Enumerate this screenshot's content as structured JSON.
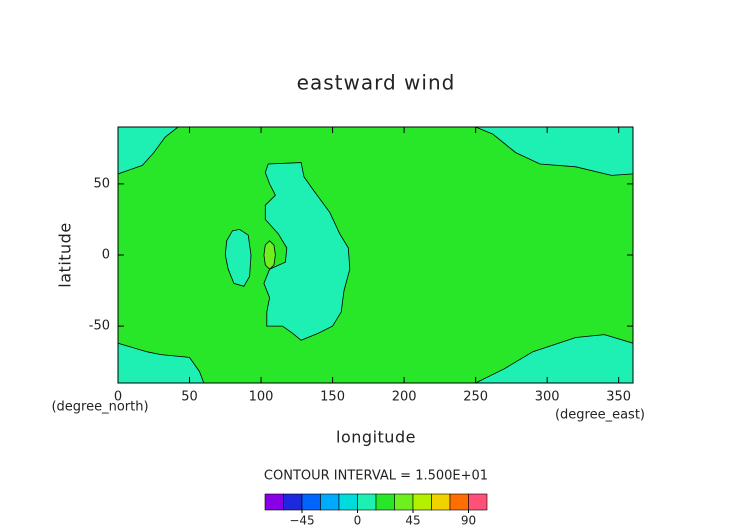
{
  "chart_data": {
    "type": "contour",
    "title": "eastward wind",
    "x_label": "longitude",
    "y_label": "latitude",
    "x_unit_label": "(degree_east)",
    "y_unit_label": "(degree_north)",
    "contour_interval_text": "CONTOUR INTERVAL = 1.500E+01",
    "xlim": [
      0,
      360
    ],
    "ylim": [
      -90,
      90
    ],
    "xticks": [
      0,
      50,
      100,
      150,
      200,
      250,
      300,
      350
    ],
    "yticks": [
      -50,
      0,
      50
    ],
    "background_level": 15,
    "regions": [
      {
        "level": 0,
        "lon": [
          0,
          42,
          33,
          25,
          17,
          0
        ],
        "lat": [
          90,
          90,
          83,
          72,
          63,
          57
        ]
      },
      {
        "level": 0,
        "lon": [
          250,
          360,
          360,
          345,
          320,
          295,
          278,
          262
        ],
        "lat": [
          90,
          90,
          57,
          56,
          62,
          64,
          72,
          85
        ]
      },
      {
        "level": 0,
        "lon": [
          0,
          20,
          30,
          50,
          57,
          60,
          0
        ],
        "lat": [
          -62,
          -68,
          -70,
          -72,
          -82,
          -90,
          -90
        ]
      },
      {
        "level": 0,
        "lon": [
          250,
          270,
          290,
          320,
          340,
          360,
          360
        ],
        "lat": [
          -90,
          -80,
          -68,
          -58,
          -56,
          -62,
          -90
        ]
      },
      {
        "level": 0,
        "lon": [
          105,
          128,
          130,
          137,
          148,
          155,
          161,
          162,
          158,
          156,
          150,
          140,
          128,
          122,
          115,
          104,
          104,
          106,
          102,
          106,
          117,
          118,
          112,
          103,
          103,
          110,
          106,
          103
        ],
        "lat": [
          64,
          65,
          55,
          45,
          30,
          15,
          5,
          -10,
          -25,
          -40,
          -50,
          -55,
          -60,
          -55,
          -50,
          -50,
          -40,
          -30,
          -20,
          -10,
          -5,
          5,
          15,
          25,
          35,
          42,
          50,
          58
        ]
      },
      {
        "level": 0,
        "lon": [
          85,
          91,
          93,
          92,
          88,
          81,
          77,
          75,
          76,
          80
        ],
        "lat": [
          18,
          14,
          0,
          -15,
          -22,
          -20,
          -10,
          0,
          10,
          17
        ]
      },
      {
        "level": 30,
        "lon": [
          106,
          109,
          110,
          109,
          106,
          103,
          102,
          103
        ],
        "lat": [
          10,
          7,
          0,
          -7,
          -10,
          -7,
          0,
          7
        ]
      }
    ],
    "colorbar": {
      "bounds": [
        -75,
        -60,
        -45,
        -30,
        -15,
        0,
        15,
        30,
        45,
        60,
        75,
        90,
        105
      ],
      "colors": [
        "#8a00e6",
        "#1e28dc",
        "#0064ff",
        "#00aaff",
        "#00dcdc",
        "#1ef0b4",
        "#28e628",
        "#6ef01e",
        "#b4f000",
        "#f0d200",
        "#ff6e00",
        "#ff5078"
      ],
      "ticks": [
        {
          "value": -45,
          "label": "−45"
        },
        0,
        45,
        90
      ]
    }
  }
}
